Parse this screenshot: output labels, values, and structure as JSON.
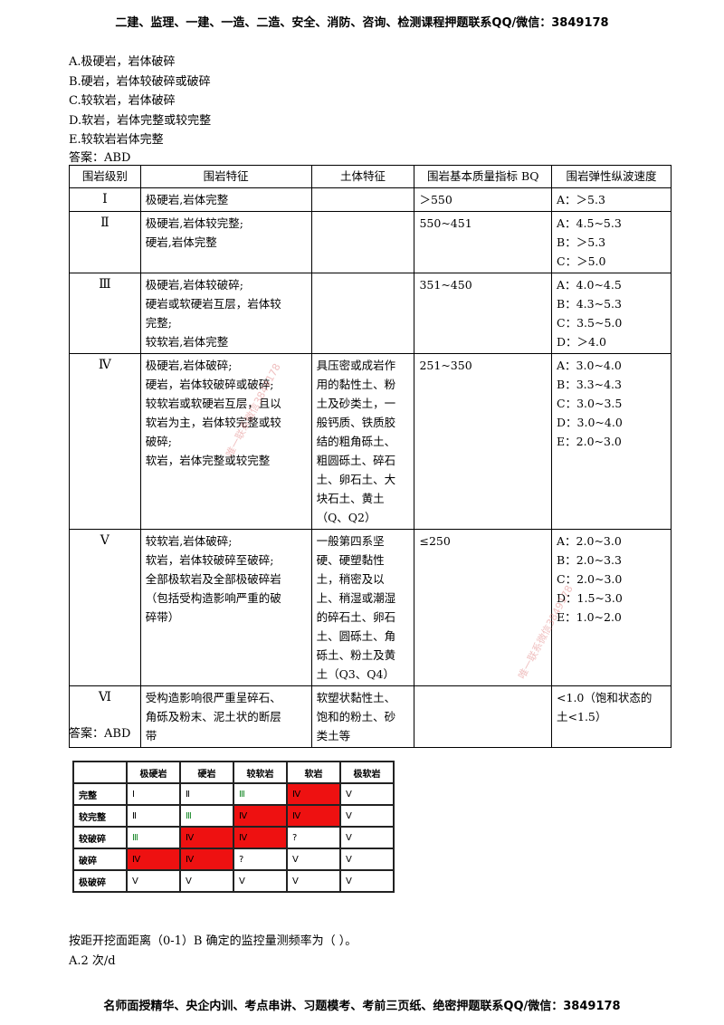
{
  "header": {
    "text": "二建、监理、一建、一造、二造、安全、消防、咨询、检测课程押题联系QQ/微信：3849178"
  },
  "options": [
    "A.极硬岩，岩体破碎",
    "B.硬岩，岩体较破碎或破碎",
    "C.较软岩，岩体破碎",
    "D.软岩，岩体完整或较完整",
    "E.较软岩岩体完整"
  ],
  "answer_top": "答案：ABD",
  "table": {
    "headers": [
      "围岩级别",
      "围岩特征",
      "土体特征",
      "围岩基本质量指标 BQ",
      "围岩弹性纵波速度"
    ],
    "rows": [
      {
        "grade": "Ⅰ",
        "rock": [
          "极硬岩,岩体完整"
        ],
        "soil": [],
        "bq": [
          "＞550"
        ],
        "vel": [
          "A：＞5.3"
        ]
      },
      {
        "grade": "Ⅱ",
        "rock": [
          "极硬岩,岩体较完整;",
          "硬岩,岩体完整"
        ],
        "soil": [],
        "bq": [
          "550~451"
        ],
        "vel": [
          "A：4.5~5.3",
          "B：＞5.3",
          "C：＞5.0"
        ]
      },
      {
        "grade": "Ⅲ",
        "rock": [
          "极硬岩,岩体较破碎;",
          "硬岩或软硬岩互层，岩体较",
          "完整;",
          "较软岩,岩体完整"
        ],
        "soil": [],
        "bq": [
          "351~450"
        ],
        "vel": [
          "A：4.0~4.5",
          "B：4.3~5.3",
          "C：3.5~5.0",
          "D：＞4.0"
        ]
      },
      {
        "grade": "Ⅳ",
        "rock": [
          "极硬岩,岩体破碎;",
          "硬岩，岩体较破碎或破碎;",
          "较软岩或软硬岩互层，且以",
          "软岩为主，岩体较完整或较",
          "破碎;",
          "软岩，岩体完整或较完整"
        ],
        "soil": [
          "具压密或成岩作",
          "用的黏性土、粉",
          "土及砂类土，一",
          "般钙质、铁质胶",
          "结的粗角砾土、",
          "粗圆砾土、碎石",
          "土、卵石土、大",
          "块石土、黄土",
          "（Q、Q2）"
        ],
        "bq": [
          "251~350"
        ],
        "vel": [
          "A：3.0~4.0",
          "B：3.3~4.3",
          "C：3.0~3.5",
          "D：3.0~4.0",
          "E：2.0~3.0"
        ]
      },
      {
        "grade": "Ⅴ",
        "rock": [
          "较软岩,岩体破碎;",
          "软岩，岩体较破碎至破碎;",
          "全部极软岩及全部极破碎岩",
          "（包括受构造影响严重的破",
          "碎带）"
        ],
        "soil": [
          "一般第四系坚",
          "硬、硬塑黏性",
          "土，稍密及以",
          "上、稍湿或潮湿",
          "的碎石土、卵石",
          "土、圆砾土、角",
          "砾土、粉土及黄",
          "土（Q3、Q4）"
        ],
        "bq": [
          "≤250"
        ],
        "vel": [
          "A：2.0~3.0",
          "B：2.0~3.3",
          "C：2.0~3.0",
          "D：1.5~3.0",
          "E：1.0~2.0"
        ]
      },
      {
        "grade": "Ⅵ",
        "rock": [
          "受构造影响很严重呈碎石、",
          "角砾及粉末、泥土状的断层",
          "带"
        ],
        "soil": [
          "软塑状黏性土、",
          "饱和的粉土、砂",
          "类土等"
        ],
        "bq": [],
        "vel": [
          "<1.0（饱和状态的",
          "土<1.5）"
        ]
      }
    ]
  },
  "answer_bottom": "答案：ABD",
  "grid": {
    "cols": [
      "极硬岩",
      "硬岩",
      "较软岩",
      "软岩",
      "极软岩"
    ],
    "rows": [
      {
        "label": "完整",
        "cells": [
          "Ⅰ",
          "Ⅱ",
          "Ⅲ",
          "Ⅳ",
          "Ⅴ"
        ],
        "red": [
          false,
          false,
          false,
          true,
          false
        ],
        "green": [
          false,
          false,
          true,
          false,
          false
        ]
      },
      {
        "label": "较完整",
        "cells": [
          "Ⅱ",
          "Ⅲ",
          "Ⅳ",
          "Ⅳ",
          "Ⅴ"
        ],
        "red": [
          false,
          false,
          true,
          true,
          false
        ],
        "green": [
          false,
          true,
          false,
          false,
          false
        ]
      },
      {
        "label": "较破碎",
        "cells": [
          "Ⅲ",
          "Ⅳ",
          "Ⅳ",
          "?",
          "Ⅴ"
        ],
        "red": [
          false,
          true,
          true,
          false,
          false
        ],
        "green": [
          true,
          false,
          false,
          false,
          false
        ]
      },
      {
        "label": "破碎",
        "cells": [
          "Ⅳ",
          "Ⅳ",
          "?",
          "Ⅴ",
          "Ⅴ"
        ],
        "red": [
          true,
          true,
          false,
          false,
          false
        ],
        "green": [
          false,
          false,
          false,
          false,
          false
        ]
      },
      {
        "label": "极破碎",
        "cells": [
          "Ⅴ",
          "Ⅴ",
          "Ⅴ",
          "Ⅴ",
          "Ⅴ"
        ],
        "red": [
          false,
          false,
          false,
          false,
          false
        ],
        "green": [
          false,
          false,
          false,
          false,
          false
        ]
      }
    ]
  },
  "question": "按距开挖面距离（0-1）B 确定的监控量测频率为（   ）。",
  "question_option": "A.2 次/d",
  "footer": {
    "text": "名师面授精华、央企内训、考点串讲、习题模考、考前三页纸、绝密押题联系QQ/微信：3849178"
  },
  "watermarks": [
    "唯一联系微信3849178",
    "唯一联系微信3849178"
  ]
}
